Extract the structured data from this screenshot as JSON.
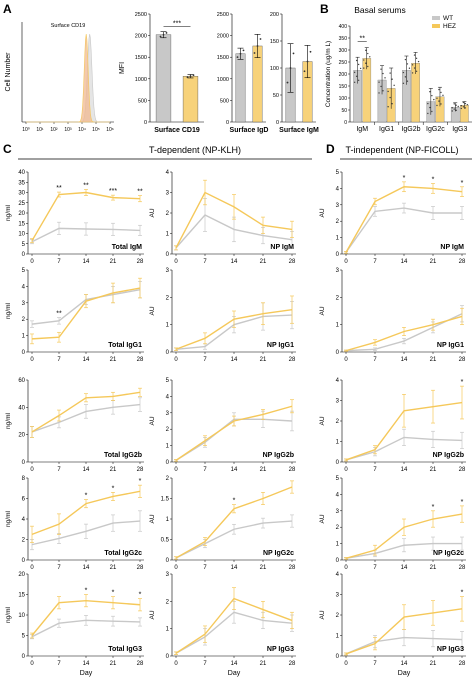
{
  "panels": {
    "A": {
      "letter": "A"
    },
    "B": {
      "letter": "B",
      "title": "Basal serums"
    },
    "C": {
      "letter": "C",
      "title": "T-dependent (NP-KLH)"
    },
    "D": {
      "letter": "D",
      "title": "T-independent (NP-FICOLL)"
    }
  },
  "colors": {
    "wt": "#c8c8c8",
    "hez": "#f5c85a",
    "hez_fill": "#f7d27a",
    "axis": "#000000"
  },
  "legend": [
    {
      "name": "WT",
      "color": "#c8c8c8"
    },
    {
      "name": "HEZ",
      "color": "#f5c85a"
    }
  ],
  "chart_data": [
    {
      "id": "A-hist",
      "type": "area",
      "title": "Surface CD19",
      "ylabel": "Cell Number",
      "xscale": "log",
      "xticks": [
        "10⁰",
        "10¹",
        "10²",
        "10³",
        "10⁴",
        "10⁵",
        "10⁶"
      ],
      "series": [
        {
          "name": "WT"
        },
        {
          "name": "HEZ"
        }
      ],
      "peaks": [
        {
          "center_log": 4.55,
          "width_log": 0.16
        },
        {
          "center_log": 4.3,
          "width_log": 0.14
        }
      ]
    },
    {
      "id": "A-cd19",
      "type": "bar",
      "xlabel": "Surface CD19",
      "ylabel": "MFI",
      "ylim": [
        0,
        2500
      ],
      "yticks": [
        0,
        500,
        1000,
        1500,
        2000,
        2500
      ],
      "values": [
        2020,
        1060
      ],
      "errors": [
        70,
        40
      ],
      "sig": "***"
    },
    {
      "id": "A-igd",
      "type": "bar",
      "xlabel": "Surface IgD",
      "ylim": [
        0,
        2500
      ],
      "yticks": [
        0,
        500,
        1000,
        1500,
        2000,
        2500
      ],
      "values": [
        1580,
        1760
      ],
      "errors": [
        130,
        270
      ]
    },
    {
      "id": "A-igm",
      "type": "bar",
      "xlabel": "Surface IgM",
      "ylim": [
        0,
        200
      ],
      "yticks": [
        0,
        50,
        100,
        150,
        200
      ],
      "values": [
        100,
        112
      ],
      "errors": [
        45,
        30
      ]
    },
    {
      "id": "B",
      "type": "bar",
      "ylabel": "Concentration (ug/m L)",
      "ylim": [
        0,
        400
      ],
      "yticks": [
        0,
        50,
        100,
        150,
        200,
        250,
        300,
        350,
        400
      ],
      "categories": [
        "IgM",
        "IgG1",
        "IgG2b",
        "IgG2c",
        "IgG3"
      ],
      "series": [
        {
          "name": "WT",
          "values": [
            215,
            175,
            215,
            85,
            62
          ],
          "errors": [
            55,
            60,
            60,
            55,
            18
          ]
        },
        {
          "name": "HEZ",
          "values": [
            265,
            140,
            245,
            105,
            70
          ],
          "errors": [
            45,
            85,
            45,
            40,
            15
          ]
        }
      ],
      "sig": [
        {
          "category": "IgM",
          "label": "**"
        }
      ]
    },
    {
      "id": "C-tot-igm",
      "type": "line",
      "label": "Total IgM",
      "ylabel": "ng/ml",
      "ylim": [
        0,
        40
      ],
      "yticks": [
        0,
        5,
        10,
        15,
        20,
        25,
        30,
        35,
        40
      ],
      "x": [
        0,
        7,
        14,
        21,
        28
      ],
      "series": [
        {
          "name": "WT",
          "values": [
            6,
            12.5,
            12.2,
            12,
            11.5
          ],
          "errors": [
            1,
            3,
            3,
            3,
            2.5
          ]
        },
        {
          "name": "HEZ",
          "values": [
            6.5,
            29,
            30,
            27.5,
            27
          ],
          "errors": [
            1,
            1.2,
            1.5,
            1.2,
            1.5
          ]
        }
      ],
      "sig": [
        {
          "x": 7,
          "label": "**"
        },
        {
          "x": 14,
          "label": "**"
        },
        {
          "x": 21,
          "label": "***"
        },
        {
          "x": 28,
          "label": "**"
        }
      ]
    },
    {
      "id": "C-np-igm",
      "type": "line",
      "label": "NP IgM",
      "ylabel": "AU",
      "ylim": [
        0,
        4
      ],
      "yticks": [
        0,
        1,
        2,
        3,
        4
      ],
      "x": [
        0,
        7,
        14,
        21,
        28
      ],
      "series": [
        {
          "name": "WT",
          "values": [
            0.3,
            1.9,
            1.2,
            0.9,
            0.7
          ],
          "errors": [
            0.1,
            0.8,
            0.6,
            0.4,
            0.4
          ]
        },
        {
          "name": "HEZ",
          "values": [
            0.3,
            3.0,
            2.3,
            1.4,
            1.2
          ],
          "errors": [
            0.1,
            0.6,
            0.6,
            0.4,
            0.4
          ]
        }
      ]
    },
    {
      "id": "C-tot-igg1",
      "type": "line",
      "label": "Total IgG1",
      "ylabel": "ng/ml",
      "ylim": [
        0,
        5
      ],
      "yticks": [
        0,
        1,
        2,
        3,
        4,
        5
      ],
      "x": [
        0,
        7,
        14,
        21,
        28
      ],
      "series": [
        {
          "name": "WT",
          "values": [
            1.7,
            1.9,
            3.2,
            3.5,
            3.8
          ],
          "errors": [
            0.2,
            0.2,
            0.3,
            0.5,
            0.5
          ]
        },
        {
          "name": "HEZ",
          "values": [
            0.8,
            0.9,
            3.1,
            3.6,
            3.9
          ],
          "errors": [
            0.3,
            0.3,
            0.4,
            0.6,
            0.6
          ]
        }
      ],
      "sig": [
        {
          "x": 7,
          "label": "**"
        }
      ]
    },
    {
      "id": "C-np-igg1",
      "type": "line",
      "label": "NP IgG1",
      "ylabel": "AU",
      "ylim": [
        0,
        3
      ],
      "yticks": [
        0,
        1,
        2,
        3
      ],
      "x": [
        0,
        7,
        14,
        21,
        28
      ],
      "series": [
        {
          "name": "WT",
          "values": [
            0.1,
            0.2,
            1.0,
            1.3,
            1.35
          ],
          "errors": [
            0.05,
            0.1,
            0.3,
            0.5,
            0.5
          ]
        },
        {
          "name": "HEZ",
          "values": [
            0.1,
            0.5,
            1.2,
            1.4,
            1.55
          ],
          "errors": [
            0.05,
            0.2,
            0.3,
            0.4,
            0.5
          ]
        }
      ]
    },
    {
      "id": "C-tot-igg2b",
      "type": "line",
      "label": "Total IgG2b",
      "ylabel": "ng/ml",
      "ylim": [
        0,
        60
      ],
      "yticks": [
        0,
        20,
        40,
        60
      ],
      "x": [
        0,
        7,
        14,
        21,
        28
      ],
      "series": [
        {
          "name": "WT",
          "values": [
            22,
            29,
            37,
            40,
            42
          ],
          "errors": [
            4,
            4,
            5,
            5,
            5
          ]
        },
        {
          "name": "HEZ",
          "values": [
            22,
            34,
            47,
            48,
            51
          ],
          "errors": [
            4,
            4,
            3,
            3,
            3
          ]
        }
      ]
    },
    {
      "id": "C-np-igg2b",
      "type": "line",
      "label": "NP IgG2b",
      "ylabel": "AU",
      "ylim": [
        0,
        5
      ],
      "yticks": [
        0,
        1,
        2,
        3,
        4,
        5
      ],
      "x": [
        0,
        7,
        14,
        21,
        28
      ],
      "series": [
        {
          "name": "WT",
          "values": [
            0.1,
            1.2,
            2.6,
            2.6,
            2.5
          ],
          "errors": [
            0.05,
            0.3,
            0.4,
            0.5,
            0.6
          ]
        },
        {
          "name": "HEZ",
          "values": [
            0.1,
            1.3,
            2.5,
            2.9,
            3.4
          ],
          "errors": [
            0.05,
            0.3,
            0.3,
            0.3,
            0.4
          ]
        }
      ]
    },
    {
      "id": "C-tot-igg2c",
      "type": "line",
      "label": "Total IgG2c",
      "ylabel": "ng/ml",
      "ylim": [
        0,
        8
      ],
      "yticks": [
        0,
        2,
        4,
        6,
        8
      ],
      "x": [
        0,
        7,
        14,
        21,
        28
      ],
      "series": [
        {
          "name": "WT",
          "values": [
            1.5,
            2.1,
            2.8,
            3.6,
            3.8
          ],
          "errors": [
            0.5,
            0.5,
            0.7,
            0.8,
            1.0
          ]
        },
        {
          "name": "HEZ",
          "values": [
            2.5,
            3.5,
            5.5,
            6.2,
            6.7
          ],
          "errors": [
            0.8,
            1.0,
            0.4,
            0.4,
            0.6
          ]
        }
      ],
      "sig": [
        {
          "x": 14,
          "label": "*"
        },
        {
          "x": 21,
          "label": "*"
        },
        {
          "x": 28,
          "label": "*"
        }
      ]
    },
    {
      "id": "C-np-igg2c",
      "type": "line",
      "label": "NP IgG2c",
      "ylabel": "AU",
      "ylim": [
        0,
        2
      ],
      "yticks": [
        0,
        0.5,
        1,
        1.5,
        2
      ],
      "x": [
        0,
        7,
        14,
        21,
        28
      ],
      "series": [
        {
          "name": "WT",
          "values": [
            0.05,
            0.4,
            0.75,
            0.9,
            0.95
          ],
          "errors": [
            0.03,
            0.1,
            0.12,
            0.12,
            0.15
          ]
        },
        {
          "name": "HEZ",
          "values": [
            0.05,
            0.45,
            1.25,
            1.5,
            1.78
          ],
          "errors": [
            0.03,
            0.1,
            0.1,
            0.15,
            0.15
          ]
        }
      ],
      "sig": [
        {
          "x": 14,
          "label": "*"
        }
      ]
    },
    {
      "id": "C-tot-igg3",
      "type": "line",
      "label": "Total IgG3",
      "ylabel": "ng/ml",
      "ylim": [
        0,
        20
      ],
      "yticks": [
        0,
        5,
        10,
        15,
        20
      ],
      "x": [
        0,
        7,
        14,
        21,
        28
      ],
      "series": [
        {
          "name": "WT",
          "values": [
            4.7,
            8,
            8.7,
            8.5,
            8.3
          ],
          "errors": [
            0.5,
            1.0,
            1.2,
            1.2,
            1.0
          ]
        },
        {
          "name": "HEZ",
          "values": [
            5,
            13,
            13.5,
            13,
            12.5
          ],
          "errors": [
            0.6,
            1.5,
            1.5,
            1.5,
            1.5
          ]
        }
      ],
      "sig": [
        {
          "x": 14,
          "label": "*"
        },
        {
          "x": 21,
          "label": "*"
        },
        {
          "x": 28,
          "label": "*"
        }
      ]
    },
    {
      "id": "C-np-igg3",
      "type": "line",
      "label": "NP IgG3",
      "ylabel": "AU",
      "ylim": [
        0,
        3
      ],
      "yticks": [
        0,
        1,
        2,
        3
      ],
      "x": [
        0,
        7,
        14,
        21,
        28
      ],
      "series": [
        {
          "name": "WT",
          "values": [
            0.1,
            0.7,
            1.6,
            1.3,
            1.2
          ],
          "errors": [
            0.05,
            0.3,
            0.4,
            0.3,
            0.3
          ]
        },
        {
          "name": "HEZ",
          "values": [
            0.1,
            0.8,
            2.1,
            1.7,
            1.3
          ],
          "errors": [
            0.05,
            0.3,
            0.4,
            0.3,
            0.3
          ]
        }
      ]
    },
    {
      "id": "D-np-igm",
      "type": "line",
      "label": "NP IgM",
      "ylabel": "AU",
      "ylim": [
        0,
        5
      ],
      "yticks": [
        0,
        1,
        2,
        3,
        4,
        5
      ],
      "x": [
        0,
        7,
        14,
        21,
        28
      ],
      "series": [
        {
          "name": "WT",
          "values": [
            0.1,
            2.6,
            2.8,
            2.5,
            2.5
          ],
          "errors": [
            0.05,
            0.3,
            0.3,
            0.4,
            0.4
          ]
        },
        {
          "name": "HEZ",
          "values": [
            0.1,
            3.2,
            4.1,
            4.0,
            3.8
          ],
          "errors": [
            0.05,
            0.2,
            0.3,
            0.3,
            0.3
          ]
        }
      ],
      "sig": [
        {
          "x": 14,
          "label": "*"
        },
        {
          "x": 21,
          "label": "*"
        },
        {
          "x": 28,
          "label": "*"
        }
      ]
    },
    {
      "id": "D-np-igg1",
      "type": "line",
      "label": "NP IgG1",
      "ylabel": "AU",
      "ylim": [
        0,
        3
      ],
      "yticks": [
        0,
        1,
        2,
        3
      ],
      "x": [
        0,
        7,
        14,
        21,
        28
      ],
      "series": [
        {
          "name": "WT",
          "values": [
            0.05,
            0.1,
            0.4,
            0.9,
            1.4
          ],
          "errors": [
            0.02,
            0.05,
            0.1,
            0.2,
            0.3
          ]
        },
        {
          "name": "HEZ",
          "values": [
            0.05,
            0.35,
            0.75,
            1.0,
            1.3
          ],
          "errors": [
            0.02,
            0.1,
            0.15,
            0.2,
            0.3
          ]
        }
      ]
    },
    {
      "id": "D-np-igg2b",
      "type": "line",
      "label": "NP IgG2b",
      "ylabel": "AU",
      "ylim": [
        0,
        4
      ],
      "yticks": [
        0,
        1,
        2,
        3,
        4
      ],
      "x": [
        0,
        7,
        14,
        21,
        28
      ],
      "series": [
        {
          "name": "WT",
          "values": [
            0.1,
            0.5,
            1.2,
            1.1,
            1.05
          ],
          "errors": [
            0.05,
            0.2,
            0.4,
            0.4,
            0.4
          ]
        },
        {
          "name": "HEZ",
          "values": [
            0.1,
            0.6,
            2.5,
            2.7,
            2.9
          ],
          "errors": [
            0.05,
            0.2,
            0.8,
            0.8,
            0.8
          ]
        }
      ],
      "sig": [
        {
          "x": 28,
          "label": "*"
        }
      ]
    },
    {
      "id": "D-np-igg2c",
      "type": "line",
      "label": "NP IgG2c",
      "ylabel": "AU",
      "ylim": [
        0,
        5
      ],
      "yticks": [
        0,
        1,
        2,
        3,
        4,
        5
      ],
      "x": [
        0,
        7,
        14,
        21,
        28
      ],
      "series": [
        {
          "name": "WT",
          "values": [
            0.1,
            0.4,
            0.9,
            1.0,
            1.0
          ],
          "errors": [
            0.05,
            0.2,
            0.4,
            0.4,
            0.4
          ]
        },
        {
          "name": "HEZ",
          "values": [
            0.1,
            0.6,
            2.0,
            2.5,
            2.8
          ],
          "errors": [
            0.05,
            0.3,
            0.5,
            0.5,
            0.5
          ]
        }
      ],
      "sig": [
        {
          "x": 21,
          "label": "*"
        },
        {
          "x": 28,
          "label": "*"
        }
      ]
    },
    {
      "id": "D-np-igg3",
      "type": "line",
      "label": "NP IgG3",
      "ylabel": "AU",
      "ylim": [
        0,
        4
      ],
      "yticks": [
        0,
        1,
        2,
        3,
        4
      ],
      "x": [
        0,
        7,
        14,
        21,
        28
      ],
      "series": [
        {
          "name": "WT",
          "values": [
            0.1,
            0.7,
            0.9,
            0.85,
            0.8
          ],
          "errors": [
            0.05,
            0.3,
            0.4,
            0.4,
            0.4
          ]
        },
        {
          "name": "HEZ",
          "values": [
            0.1,
            0.6,
            1.9,
            2.1,
            2.3
          ],
          "errors": [
            0.05,
            0.3,
            0.6,
            0.6,
            0.6
          ]
        }
      ],
      "sig": [
        {
          "x": 28,
          "label": "*"
        }
      ]
    }
  ],
  "x_axis_label": "Day"
}
